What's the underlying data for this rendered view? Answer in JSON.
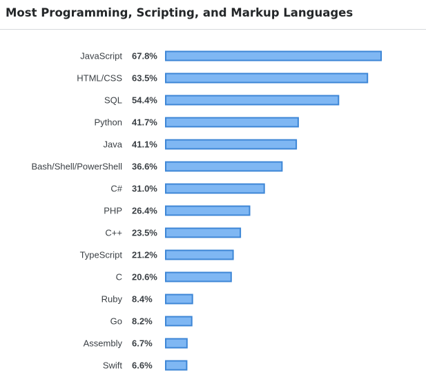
{
  "title": "Most Programming, Scripting, and Markup Languages",
  "colors": {
    "bar_fill": "#7fb7f3",
    "bar_stroke": "#3d86d6",
    "text": "#3b4045",
    "divider": "#d6d9dc"
  },
  "chart_data": {
    "type": "bar",
    "orientation": "horizontal",
    "title": "Most Programming, Scripting, and Markup Languages",
    "xlabel": "",
    "ylabel": "",
    "unit": "%",
    "xlim": [
      0,
      67.8
    ],
    "grid": false,
    "legend": "none",
    "categories": [
      "JavaScript",
      "HTML/CSS",
      "SQL",
      "Python",
      "Java",
      "Bash/Shell/PowerShell",
      "C#",
      "PHP",
      "C++",
      "TypeScript",
      "C",
      "Ruby",
      "Go",
      "Assembly",
      "Swift"
    ],
    "values": [
      67.8,
      63.5,
      54.4,
      41.7,
      41.1,
      36.6,
      31.0,
      26.4,
      23.5,
      21.2,
      20.6,
      8.4,
      8.2,
      6.7,
      6.6
    ],
    "value_labels": [
      "67.8%",
      "63.5%",
      "54.4%",
      "41.7%",
      "41.1%",
      "36.6%",
      "31.0%",
      "26.4%",
      "23.5%",
      "21.2%",
      "20.6%",
      "8.4%",
      "8.2%",
      "6.7%",
      "6.6%"
    ]
  }
}
